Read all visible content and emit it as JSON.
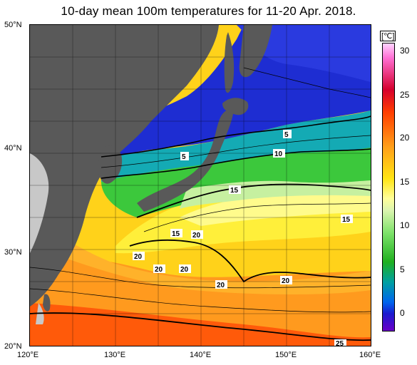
{
  "title": "10-day mean 100m temperatures for 11-20 Apr. 2018.",
  "unit_label": "[℃]",
  "lat_labels": [
    "50°N",
    "40°N",
    "30°N",
    "20°N"
  ],
  "lon_labels": [
    "120°E",
    "130°E",
    "140°E",
    "150°E",
    "160°E"
  ],
  "colorbar": {
    "ticks": [
      "30",
      "25",
      "20",
      "15",
      "10",
      "5",
      "0"
    ],
    "range": [
      -2,
      32
    ]
  },
  "contour_labels": [
    "5",
    "5",
    "10",
    "15",
    "15",
    "15",
    "20",
    "20",
    "20",
    "20",
    "20",
    "20",
    "25"
  ],
  "colors": {
    "land": "#595959",
    "no_data": "#c8c8c8",
    "cold": "#1e2dd2",
    "warm": "#ff8c1e"
  }
}
